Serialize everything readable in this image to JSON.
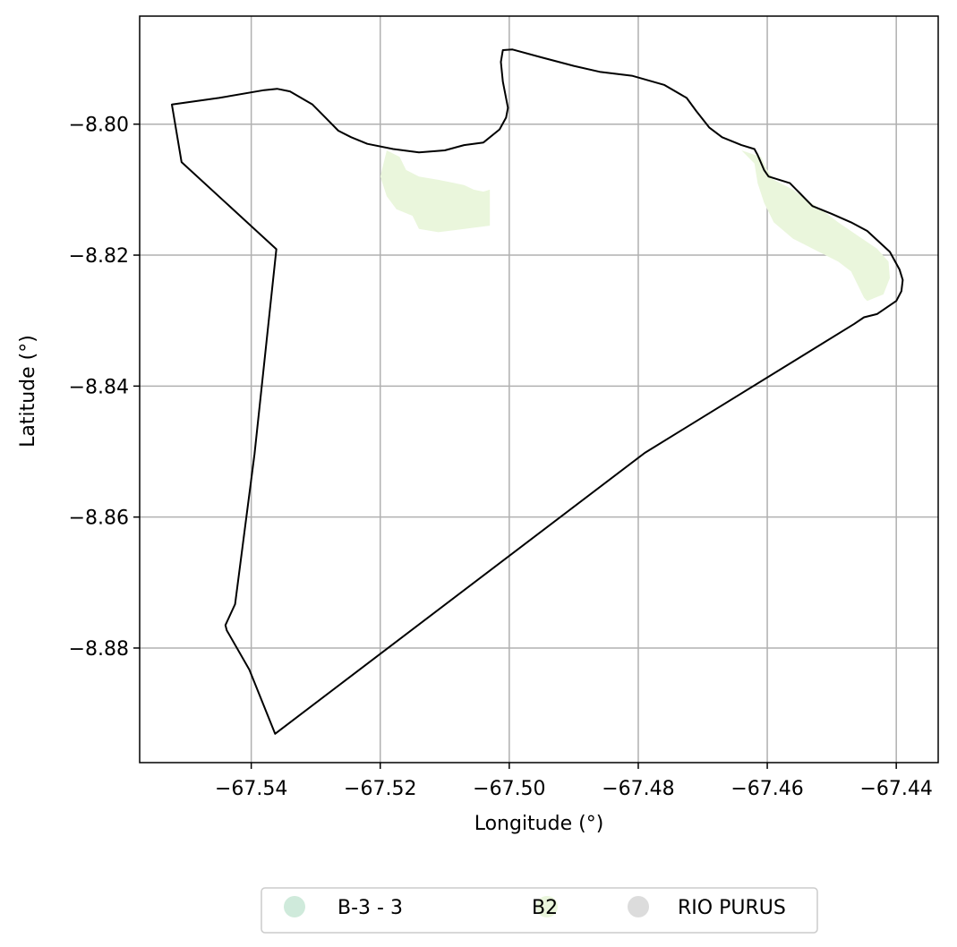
{
  "chart_data": {
    "type": "map",
    "xlabel": "Longitude (°)",
    "ylabel": "Latitude (°)",
    "xlim": [
      -67.5573,
      -67.4335
    ],
    "ylim": [
      -8.8975,
      -8.7835
    ],
    "grid": true,
    "x_ticks": [
      -67.54,
      -67.52,
      -67.5,
      -67.48,
      -67.46,
      -67.44
    ],
    "x_tick_labels": [
      "−67.54",
      "−67.52",
      "−67.50",
      "−67.48",
      "−67.46",
      "−67.44"
    ],
    "y_ticks": [
      -8.8,
      -8.82,
      -8.84,
      -8.86,
      -8.88
    ],
    "y_tick_labels": [
      "−8.80",
      "−8.82",
      "−8.84",
      "−8.86",
      "−8.88"
    ],
    "legend": {
      "placement": "bottom-center-outside",
      "entries": [
        {
          "label": "B-3 - 3",
          "color": "#cfeadb"
        },
        {
          "label": "B2",
          "color": "#eaf6dc"
        },
        {
          "label": "RIO PURUS",
          "color": "#dcdcdc"
        }
      ]
    },
    "boundary": {
      "stroke": "#000000",
      "coordinates": [
        [
          -67.5523,
          -8.797
        ],
        [
          -67.545,
          -8.796
        ],
        [
          -67.538,
          -8.7948
        ],
        [
          -67.536,
          -8.7946
        ],
        [
          -67.534,
          -8.795
        ],
        [
          -67.5305,
          -8.797
        ],
        [
          -67.529,
          -8.7985
        ],
        [
          -67.5265,
          -8.801
        ],
        [
          -67.5245,
          -8.802
        ],
        [
          -67.522,
          -8.803
        ],
        [
          -67.518,
          -8.8038
        ],
        [
          -67.514,
          -8.8043
        ],
        [
          -67.51,
          -8.804
        ],
        [
          -67.507,
          -8.8032
        ],
        [
          -67.504,
          -8.8028
        ],
        [
          -67.5015,
          -8.8008
        ],
        [
          -67.5005,
          -8.799
        ],
        [
          -67.5002,
          -8.7975
        ],
        [
          -67.501,
          -8.7935
        ],
        [
          -67.5013,
          -8.7905
        ],
        [
          -67.501,
          -8.7887
        ],
        [
          -67.4995,
          -8.7886
        ],
        [
          -67.495,
          -8.7898
        ],
        [
          -67.49,
          -8.7911
        ],
        [
          -67.486,
          -8.792
        ],
        [
          -67.481,
          -8.7926
        ],
        [
          -67.476,
          -8.794
        ],
        [
          -67.4725,
          -8.796
        ],
        [
          -67.471,
          -8.798
        ],
        [
          -67.469,
          -8.8005
        ],
        [
          -67.467,
          -8.802
        ],
        [
          -67.464,
          -8.8032
        ],
        [
          -67.462,
          -8.8038
        ],
        [
          -67.4615,
          -8.8047
        ],
        [
          -67.4605,
          -8.807
        ],
        [
          -67.4598,
          -8.808
        ],
        [
          -67.4565,
          -8.809
        ],
        [
          -67.455,
          -8.8105
        ],
        [
          -67.453,
          -8.8125
        ],
        [
          -67.45,
          -8.8137
        ],
        [
          -67.447,
          -8.815
        ],
        [
          -67.4445,
          -8.8163
        ],
        [
          -67.441,
          -8.8195
        ],
        [
          -67.4395,
          -8.8222
        ],
        [
          -67.439,
          -8.8238
        ],
        [
          -67.4392,
          -8.8255
        ],
        [
          -67.44,
          -8.827
        ],
        [
          -67.4415,
          -8.828
        ],
        [
          -67.443,
          -8.829
        ],
        [
          -67.445,
          -8.8295
        ],
        [
          -67.4465,
          -8.8305
        ],
        [
          -67.479,
          -8.8502
        ],
        [
          -67.5363,
          -8.8931
        ],
        [
          -67.5403,
          -8.8833
        ],
        [
          -67.5438,
          -8.8773
        ],
        [
          -67.544,
          -8.8765
        ],
        [
          -67.5425,
          -8.8733
        ],
        [
          -67.5395,
          -8.8504
        ],
        [
          -67.5361,
          -8.8191
        ],
        [
          -67.5508,
          -8.8058
        ],
        [
          -67.5523,
          -8.797
        ]
      ]
    },
    "series": [
      {
        "name": "B2",
        "color": "#eaf6dc",
        "polygons": [
          [
            [
              -67.519,
              -8.804
            ],
            [
              -67.517,
              -8.805
            ],
            [
              -67.516,
              -8.807
            ],
            [
              -67.514,
              -8.808
            ],
            [
              -67.511,
              -8.8085
            ],
            [
              -67.507,
              -8.8093
            ],
            [
              -67.5055,
              -8.81
            ],
            [
              -67.504,
              -8.8103
            ],
            [
              -67.503,
              -8.81
            ],
            [
              -67.503,
              -8.8155
            ],
            [
              -67.511,
              -8.8165
            ],
            [
              -67.514,
              -8.816
            ],
            [
              -67.515,
              -8.814
            ],
            [
              -67.5175,
              -8.813
            ],
            [
              -67.519,
              -8.811
            ],
            [
              -67.52,
              -8.808
            ],
            [
              -67.519,
              -8.804
            ]
          ],
          [
            [
              -67.464,
              -8.804
            ],
            [
              -67.462,
              -8.806
            ],
            [
              -67.4615,
              -8.809
            ],
            [
              -67.4605,
              -8.812
            ],
            [
              -67.459,
              -8.815
            ],
            [
              -67.456,
              -8.8175
            ],
            [
              -67.452,
              -8.8195
            ],
            [
              -67.449,
              -8.821
            ],
            [
              -67.447,
              -8.8225
            ],
            [
              -67.446,
              -8.8245
            ],
            [
              -67.445,
              -8.8265
            ],
            [
              -67.4445,
              -8.827
            ],
            [
              -67.442,
              -8.826
            ],
            [
              -67.441,
              -8.8235
            ],
            [
              -67.4412,
              -8.821
            ],
            [
              -67.443,
              -8.819
            ],
            [
              -67.446,
              -8.817
            ],
            [
              -67.449,
              -8.815
            ],
            [
              -67.451,
              -8.8135
            ],
            [
              -67.454,
              -8.8115
            ],
            [
              -67.456,
              -8.81
            ],
            [
              -67.459,
              -8.8085
            ],
            [
              -67.46,
              -8.807
            ],
            [
              -67.461,
              -8.805
            ],
            [
              -67.464,
              -8.804
            ]
          ]
        ]
      }
    ]
  }
}
